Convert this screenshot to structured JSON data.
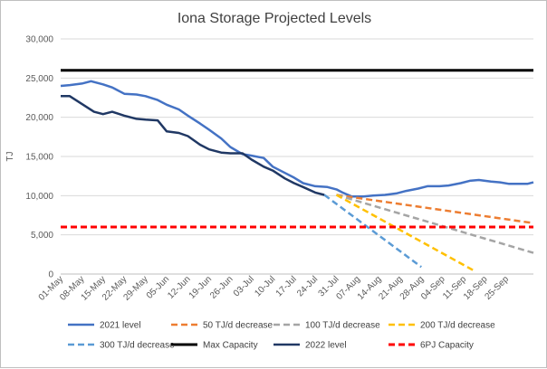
{
  "chart_data": {
    "type": "line",
    "title": "Iona Storage Projected Levels",
    "xlabel": "",
    "ylabel": "TJ",
    "ylim": [
      0,
      30000
    ],
    "yticks": [
      0,
      5000,
      10000,
      15000,
      20000,
      25000,
      30000
    ],
    "ytick_labels": [
      "0",
      "5,000",
      "10,000",
      "15,000",
      "20,000",
      "25,000",
      "30,000"
    ],
    "x_labels": [
      "01-May",
      "08-May",
      "15-May",
      "22-May",
      "29-May",
      "05-Jun",
      "12-Jun",
      "19-Jun",
      "26-Jun",
      "03-Jul",
      "10-Jul",
      "17-Jul",
      "24-Jul",
      "31-Jul",
      "07-Aug",
      "14-Aug",
      "21-Aug",
      "28-Aug",
      "04-Sep",
      "11-Sep",
      "18-Sep",
      "25-Sep"
    ],
    "x_range_days": [
      0,
      156
    ],
    "grid": "horizontal",
    "legend_position": "bottom",
    "series": [
      {
        "name": "2021 level",
        "color": "#4472c4",
        "dash": "solid",
        "width": 2.5,
        "points": [
          [
            0,
            24000
          ],
          [
            3,
            24100
          ],
          [
            7,
            24300
          ],
          [
            10,
            24600
          ],
          [
            14,
            24200
          ],
          [
            17,
            23800
          ],
          [
            21,
            23000
          ],
          [
            25,
            22900
          ],
          [
            28,
            22700
          ],
          [
            32,
            22200
          ],
          [
            35,
            21600
          ],
          [
            39,
            21000
          ],
          [
            42,
            20200
          ],
          [
            46,
            19200
          ],
          [
            49,
            18400
          ],
          [
            53,
            17300
          ],
          [
            56,
            16200
          ],
          [
            60,
            15300
          ],
          [
            63,
            15100
          ],
          [
            67,
            14800
          ],
          [
            70,
            13700
          ],
          [
            74,
            12900
          ],
          [
            77,
            12300
          ],
          [
            80,
            11600
          ],
          [
            84,
            11200
          ],
          [
            88,
            11100
          ],
          [
            91,
            10800
          ],
          [
            93,
            10400
          ],
          [
            96,
            9900
          ],
          [
            100,
            9900
          ],
          [
            103,
            10000
          ],
          [
            107,
            10100
          ],
          [
            111,
            10300
          ],
          [
            114,
            10600
          ],
          [
            118,
            10900
          ],
          [
            121,
            11200
          ],
          [
            125,
            11200
          ],
          [
            128,
            11300
          ],
          [
            132,
            11600
          ],
          [
            135,
            11900
          ],
          [
            138,
            12000
          ],
          [
            142,
            11800
          ],
          [
            145,
            11700
          ],
          [
            148,
            11500
          ],
          [
            151,
            11500
          ],
          [
            154,
            11500
          ],
          [
            156,
            11700
          ]
        ]
      },
      {
        "name": "50 TJ/d decrease",
        "color": "#ed7d31",
        "dash": "dash",
        "width": 2.5,
        "points": [
          [
            91,
            10100
          ],
          [
            156,
            6500
          ]
        ]
      },
      {
        "name": "100 TJ/d decrease",
        "color": "#a5a5a5",
        "dash": "dash",
        "width": 2.5,
        "points": [
          [
            91,
            10100
          ],
          [
            156,
            2700
          ]
        ]
      },
      {
        "name": "200 TJ/d decrease",
        "color": "#ffc000",
        "dash": "dash",
        "width": 2.5,
        "points": [
          [
            91,
            10100
          ],
          [
            137,
            300
          ]
        ]
      },
      {
        "name": "300 TJ/d decrease",
        "color": "#5b9bd5",
        "dash": "dash",
        "width": 2.5,
        "points": [
          [
            87,
            10100
          ],
          [
            119,
            900
          ]
        ]
      },
      {
        "name": "Max Capacity",
        "color": "#000000",
        "dash": "solid",
        "width": 3,
        "points": [
          [
            0,
            26000
          ],
          [
            156,
            26000
          ]
        ]
      },
      {
        "name": "2022 level",
        "color": "#203864",
        "dash": "solid",
        "width": 2.5,
        "points": [
          [
            0,
            22700
          ],
          [
            3,
            22700
          ],
          [
            7,
            21700
          ],
          [
            11,
            20700
          ],
          [
            14,
            20400
          ],
          [
            17,
            20700
          ],
          [
            21,
            20200
          ],
          [
            25,
            19800
          ],
          [
            28,
            19700
          ],
          [
            32,
            19600
          ],
          [
            35,
            18200
          ],
          [
            39,
            18000
          ],
          [
            42,
            17600
          ],
          [
            46,
            16500
          ],
          [
            49,
            15900
          ],
          [
            53,
            15500
          ],
          [
            56,
            15400
          ],
          [
            60,
            15400
          ],
          [
            63,
            14600
          ],
          [
            67,
            13700
          ],
          [
            70,
            13200
          ],
          [
            74,
            12200
          ],
          [
            77,
            11600
          ],
          [
            80,
            11100
          ],
          [
            84,
            10400
          ],
          [
            87,
            10100
          ]
        ]
      },
      {
        "name": "6PJ Capacity",
        "color": "#ff0000",
        "dash": "dash",
        "width": 3,
        "points": [
          [
            0,
            6000
          ],
          [
            156,
            6000
          ]
        ]
      }
    ]
  }
}
